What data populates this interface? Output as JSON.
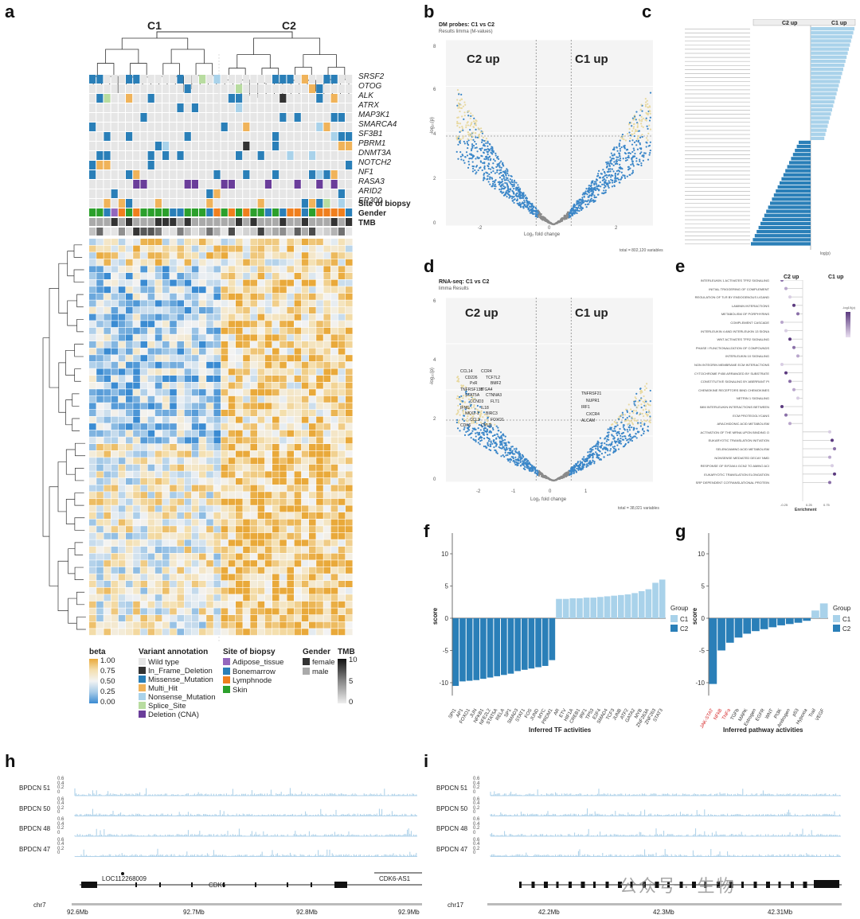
{
  "panel_labels": {
    "a": "a",
    "b": "b",
    "c": "c",
    "d": "d",
    "e": "e",
    "f": "f",
    "g": "g",
    "h": "h",
    "i": "i"
  },
  "panel_a": {
    "cluster_labels": [
      "C1",
      "C2"
    ],
    "genes": [
      "SRSF2",
      "OTOG",
      "ALK",
      "ATRX",
      "MAP3K1",
      "SMARCA4",
      "SF3B1",
      "PBRM1",
      "DNMT3A",
      "NOTCH2",
      "NF1",
      "RASA3",
      "ARID2",
      "EP300"
    ],
    "annotation_rows": [
      "Site of biopsy",
      "Gender",
      "TMB"
    ],
    "legend_beta": {
      "title": "beta",
      "ticks": [
        "1.00",
        "0.75",
        "0.50",
        "0.25",
        "0.00"
      ]
    },
    "legend_variant": {
      "title": "Variant annotation",
      "items": [
        {
          "label": "Wild type",
          "color": "#e6e6e6"
        },
        {
          "label": "In_Frame_Deletion",
          "color": "#333333"
        },
        {
          "label": "Missense_Mutation",
          "color": "#2a7fb8"
        },
        {
          "label": "Multi_Hit",
          "color": "#f0b35a"
        },
        {
          "label": "Nonsense_Mutation",
          "color": "#a9d2ea"
        },
        {
          "label": "Splice_Site",
          "color": "#b8dca0"
        },
        {
          "label": "Deletion (CNA)",
          "color": "#6a3d9a"
        }
      ]
    },
    "legend_site": {
      "title": "Site of biopsy",
      "items": [
        {
          "label": "Adipose_tissue",
          "color": "#9467bd"
        },
        {
          "label": "Bonemarrow",
          "color": "#2a7fb8"
        },
        {
          "label": "Lymphnode",
          "color": "#f07f1e"
        },
        {
          "label": "Skin",
          "color": "#2ca02c"
        }
      ]
    },
    "legend_gender": {
      "title": "Gender",
      "items": [
        {
          "label": "female",
          "color": "#333333"
        },
        {
          "label": "male",
          "color": "#aaaaaa"
        }
      ]
    },
    "legend_tmb": {
      "title": "TMB",
      "ticks": [
        "10",
        "5",
        "0"
      ]
    }
  },
  "panel_b": {
    "title": "DM probes: C1 vs C2",
    "subtitle": "Results limma (M-values)",
    "c2_label": "C2 up",
    "c1_label": "C1 up",
    "xlabel": "Log₂ fold change",
    "ylabel": "-log₁₀(p)",
    "total": "total = 802,120 variables",
    "xticks": [
      "-2",
      "0",
      "2"
    ],
    "yticks": [
      "0",
      "2",
      "4",
      "6",
      "8"
    ]
  },
  "panel_c": {
    "c2_header": "C2 up",
    "c1_header": "C1 up",
    "xlabel": "log(p)"
  },
  "panel_d": {
    "title": "RNA-seq: C1 vs C2",
    "subtitle": "limma Results",
    "c2_label": "C2 up",
    "c1_label": "C1 up",
    "xlabel": "Log₂ fold change",
    "ylabel": "-log₁₀(p)",
    "total": "total = 38,021 variables",
    "xticks": [
      "-2",
      "-1",
      "0",
      "1"
    ],
    "yticks": [
      "0",
      "2",
      "4",
      "6"
    ],
    "left_genes": [
      "CCL14",
      "CCR4",
      "CD226",
      "TCF7L2",
      "PxR",
      "BMF2",
      "TNFRSF13B",
      "ITGA4",
      "STAT5A",
      "CTNNA3",
      "CCND3",
      "FLT1",
      "IFNG",
      "IL18",
      "NKX2-1",
      "BIRC3",
      "CCL2",
      "FOXO1",
      "CDK6",
      "CYLD"
    ],
    "right_genes": [
      "TNFRSF21",
      "NUPR1",
      "IRF1",
      "CXCR4",
      "ALCAM"
    ]
  },
  "panel_e": {
    "c2_header": "C2 up",
    "c1_header": "C1 up",
    "xlabel": "Enrichment",
    "xticks": [
      "-0.25",
      "0.25",
      "0.75"
    ],
    "legend_title": "-log10(p)",
    "pathways": [
      "INTERLEUKIN 1 ACTIVATES TFR2 SIGNALING",
      "INITIAL TRIGGERING OF COMPLEMENT",
      "REGULATION OF TLR BY ENDOGENOUS LIGAND",
      "LAMININ INTERACTIONS",
      "METABOLISM OF PORPHYRINS",
      "COMPLEMENT CASCADE",
      "INTERLEUKIN 4 AND INTERLEUKIN 13 SIGNA",
      "WNT ACTIVATES TFR2 SIGNALING",
      "PHASE I FUNCTIONALIZATION OF COMPOUNDS",
      "INTERLEUKIN 10 SIGNALING",
      "NON INTEGRIN MEMBRANE ECM INTERACTIONS",
      "CYTOCHROME P450 ARRANGED BY SUBSTRATE",
      "CONSTITUTIVE SIGNALING BY ABERRANT PI",
      "CHEMOKINE RECEPTORS BIND CHEMOKINES",
      "NETRIN 1 SIGNALING",
      "IMM INTERLEUKIN INTERACTIONS BETWEEN",
      "ECM PROTEOGLYCANS",
      "ARACHIDONIC ACID METABOLISM",
      "ACTIVATION OF THE MRNA UPON BINDING O",
      "EUKARYOTIC TRANSLATION INITIATION",
      "SELENOAMINO ACID METABOLISM",
      "NONSENSE MEDIATED DECAY NMD",
      "RESPONSE OF EIF2AK4 GCN2 TO AMINO ACI",
      "EUKARYOTIC TRANSLATION ELONGATION",
      "SRP DEPENDENT COTRANSLATIONAL PROTEIN"
    ]
  },
  "panel_f": {
    "ylabel": "score",
    "xlabel": "Inferred TF activities",
    "yticks": [
      "-10",
      "-5",
      "0",
      "5",
      "10"
    ],
    "legend_title": "Group",
    "legend": [
      "C1",
      "C2"
    ]
  },
  "panel_g": {
    "ylabel": "score",
    "xlabel": "Inferred pathway activities",
    "yticks": [
      "-10",
      "-5",
      "0",
      "5",
      "10"
    ],
    "legend_title": "Group",
    "legend": [
      "C1",
      "C2"
    ]
  },
  "panel_h": {
    "tracks": [
      "BPDCN 51",
      "BPDCN 50",
      "BPDCN 48",
      "BPDCN 47"
    ],
    "track_ticks": [
      "0.6",
      "0.4",
      "0.2",
      "0"
    ],
    "genes": [
      "LOC112268009",
      "CDK6",
      "CDK6-AS1"
    ],
    "chrom": "chr7",
    "xticks": [
      "92.6Mb",
      "92.7Mb",
      "92.8Mb",
      "92.9Mb"
    ]
  },
  "panel_i": {
    "tracks": [
      "BPDCN 51",
      "BPDCN 50",
      "BPDCN 48",
      "BPDCN 47"
    ],
    "track_ticks": [
      "0.6",
      "0.4",
      "0.2",
      "0"
    ],
    "chrom": "chr17",
    "xticks": [
      "42.2Mb",
      "42.3Mb",
      "42.31Mb"
    ],
    "watermark": "公众号 · 生物"
  },
  "chart_data": [
    {
      "type": "bar",
      "title": "Inferred TF activities",
      "categories": [
        "SPI1",
        "AP1",
        "FOXO1",
        "JUN",
        "NFKB1",
        "NFE2L2",
        "STAT5A",
        "RELA",
        "SP1",
        "SMAD3",
        "STAT1",
        "FOS",
        "JUND",
        "MYC",
        "PRDM1",
        "AR",
        "ETV",
        "HIF1A",
        "CREB1",
        "IRF1",
        "TP53",
        "E2F4",
        "SMAD4",
        "TCF3",
        "JUNB",
        "ATF2",
        "GATA2",
        "MYB",
        "ZNF263A",
        "ZNF263",
        "STAT3"
      ],
      "values": [
        -10.5,
        -9.8,
        -9.7,
        -9.6,
        -9.4,
        -9.2,
        -9.0,
        -8.8,
        -8.6,
        -8.2,
        -8.0,
        -7.8,
        -7.6,
        -7.4,
        -6.5,
        3.0,
        3.0,
        3.1,
        3.1,
        3.2,
        3.2,
        3.3,
        3.4,
        3.5,
        3.6,
        3.7,
        3.9,
        4.2,
        4.5,
        5.5,
        6.0
      ],
      "groups": [
        "C2",
        "C2",
        "C2",
        "C2",
        "C2",
        "C2",
        "C2",
        "C2",
        "C2",
        "C2",
        "C2",
        "C2",
        "C2",
        "C2",
        "C2",
        "C1",
        "C1",
        "C1",
        "C1",
        "C1",
        "C1",
        "C1",
        "C1",
        "C1",
        "C1",
        "C1",
        "C1",
        "C1",
        "C1",
        "C1",
        "C1"
      ],
      "ylabel": "score",
      "ylim": [
        -12,
        12
      ]
    },
    {
      "type": "bar",
      "title": "Inferred pathway activities",
      "categories": [
        "JAK-STAT",
        "NFkB",
        "TNFa",
        "TGFb",
        "MAPK",
        "Estrogen",
        "EGFR",
        "WNT",
        "PI3K",
        "Androgen",
        "p53",
        "Hypoxia",
        "Trail",
        "VEGF"
      ],
      "values": [
        -10.2,
        -5.0,
        -3.8,
        -3.0,
        -2.4,
        -2.0,
        -1.7,
        -1.4,
        -1.1,
        -0.9,
        -0.7,
        -0.4,
        1.2,
        2.3
      ],
      "groups": [
        "C2",
        "C2",
        "C2",
        "C2",
        "C2",
        "C2",
        "C2",
        "C2",
        "C2",
        "C2",
        "C2",
        "C2",
        "C1",
        "C1"
      ],
      "highlight": [
        "JAK-STAT",
        "NFkB",
        "TNFa"
      ],
      "ylabel": "score",
      "ylim": [
        -12,
        12
      ]
    }
  ]
}
